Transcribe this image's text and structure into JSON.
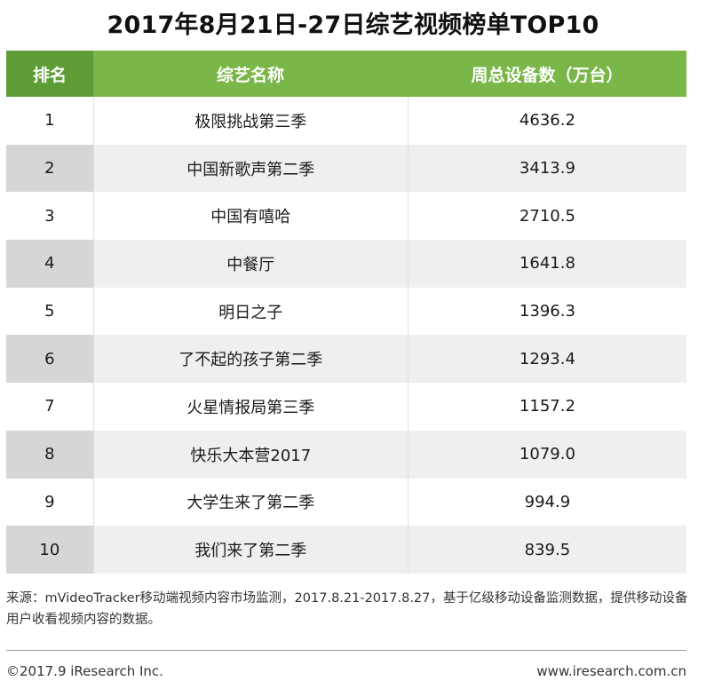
{
  "title": "2017年8月21日-27日综艺视频榜单TOP10",
  "table": {
    "headers": [
      "排名",
      "综艺名称",
      "周总设备数（万台）"
    ],
    "rows": [
      {
        "rank": "1",
        "name": "极限挑战第三季",
        "devices": "4636.2"
      },
      {
        "rank": "2",
        "name": "中国新歌声第二季",
        "devices": "3413.9"
      },
      {
        "rank": "3",
        "name": "中国有嘻哈",
        "devices": "2710.5"
      },
      {
        "rank": "4",
        "name": "中餐厅",
        "devices": "1641.8"
      },
      {
        "rank": "5",
        "name": "明日之子",
        "devices": "1396.3"
      },
      {
        "rank": "6",
        "name": "了不起的孩子第二季",
        "devices": "1293.4"
      },
      {
        "rank": "7",
        "name": "火星情报局第三季",
        "devices": "1157.2"
      },
      {
        "rank": "8",
        "name": "快乐大本营2017",
        "devices": "1079.0"
      },
      {
        "rank": "9",
        "name": "大学生来了第二季",
        "devices": "994.9"
      },
      {
        "rank": "10",
        "name": "我们来了第二季",
        "devices": "839.5"
      }
    ]
  },
  "source_note": "来源：mVideoTracker移动端视频内容市场监测，2017.8.21-2017.8.27，基于亿级移动设备监测数据，提供移动设备用户收看视频内容的数据。",
  "footer": {
    "copyright": "©2017.9 iResearch Inc.",
    "website": "www.iresearch.com.cn"
  },
  "colors": {
    "header_bg": "#7ab648",
    "header_rank_bg": "#5e9d36",
    "stripe_rank": "#d6d6d6",
    "stripe_body": "#efefef"
  }
}
